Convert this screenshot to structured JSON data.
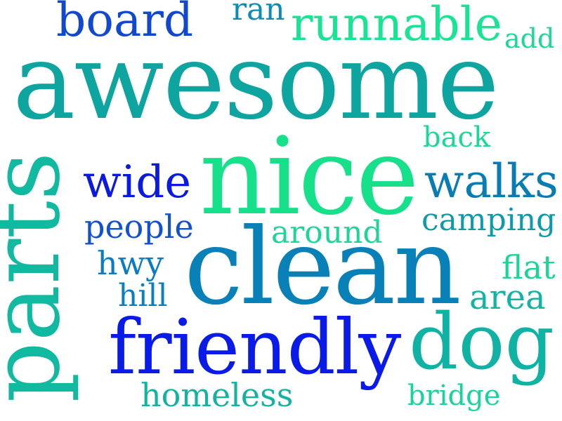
{
  "words": {
    "awesome": {
      "text": "awesome",
      "color": "#0ea5a0"
    },
    "parts": {
      "text": "parts",
      "color": "#10b9a0"
    },
    "nice": {
      "text": "nice",
      "color": "#16e08a"
    },
    "clean": {
      "text": "clean",
      "color": "#0a80b8"
    },
    "friendly": {
      "text": "friendly",
      "color": "#0a1ae8"
    },
    "dog": {
      "text": "dog",
      "color": "#10b2a4"
    },
    "board": {
      "text": "board",
      "color": "#1248d0"
    },
    "ran": {
      "text": "ran",
      "color": "#0a8cb4"
    },
    "runnable": {
      "text": "runnable",
      "color": "#18e494"
    },
    "add": {
      "text": "add",
      "color": "#1ad896"
    },
    "back": {
      "text": "back",
      "color": "#1ad89a"
    },
    "wide": {
      "text": "wide",
      "color": "#0a1ae0"
    },
    "walks": {
      "text": "walks",
      "color": "#0a7cb4"
    },
    "people": {
      "text": "people",
      "color": "#1252d0"
    },
    "around": {
      "text": "around",
      "color": "#1ed496"
    },
    "camping": {
      "text": "camping",
      "color": "#0e9aaa"
    },
    "hwy": {
      "text": "hwy",
      "color": "#0a7cc4"
    },
    "flat": {
      "text": "flat",
      "color": "#1ad696"
    },
    "hill": {
      "text": "hill",
      "color": "#0a80c0"
    },
    "area": {
      "text": "area",
      "color": "#12b4a4"
    },
    "homeless": {
      "text": "homeless",
      "color": "#12b4a0"
    },
    "bridge": {
      "text": "bridge",
      "color": "#16d49c"
    }
  }
}
